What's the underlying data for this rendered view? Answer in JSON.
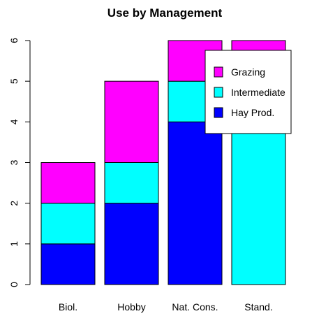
{
  "chart_data": {
    "type": "bar",
    "stacked": true,
    "title": "Use by Management",
    "xlabel": "",
    "ylabel": "",
    "categories": [
      "Biol.",
      "Hobby",
      "Nat. Cons.",
      "Stand."
    ],
    "series": [
      {
        "name": "Hay Prod.",
        "color": "#0000ff",
        "values": [
          1,
          2,
          4,
          0
        ]
      },
      {
        "name": "Intermediate",
        "color": "#00ffff",
        "values": [
          1,
          1,
          1,
          5
        ]
      },
      {
        "name": "Grazing",
        "color": "#ff00ff",
        "values": [
          1,
          2,
          1,
          1
        ]
      }
    ],
    "ylim": [
      0,
      6
    ],
    "yticks": [
      0,
      1,
      2,
      3,
      4,
      5,
      6
    ],
    "grid": false,
    "legend": {
      "position": "top-right",
      "order": [
        "Grazing",
        "Intermediate",
        "Hay Prod."
      ]
    }
  }
}
